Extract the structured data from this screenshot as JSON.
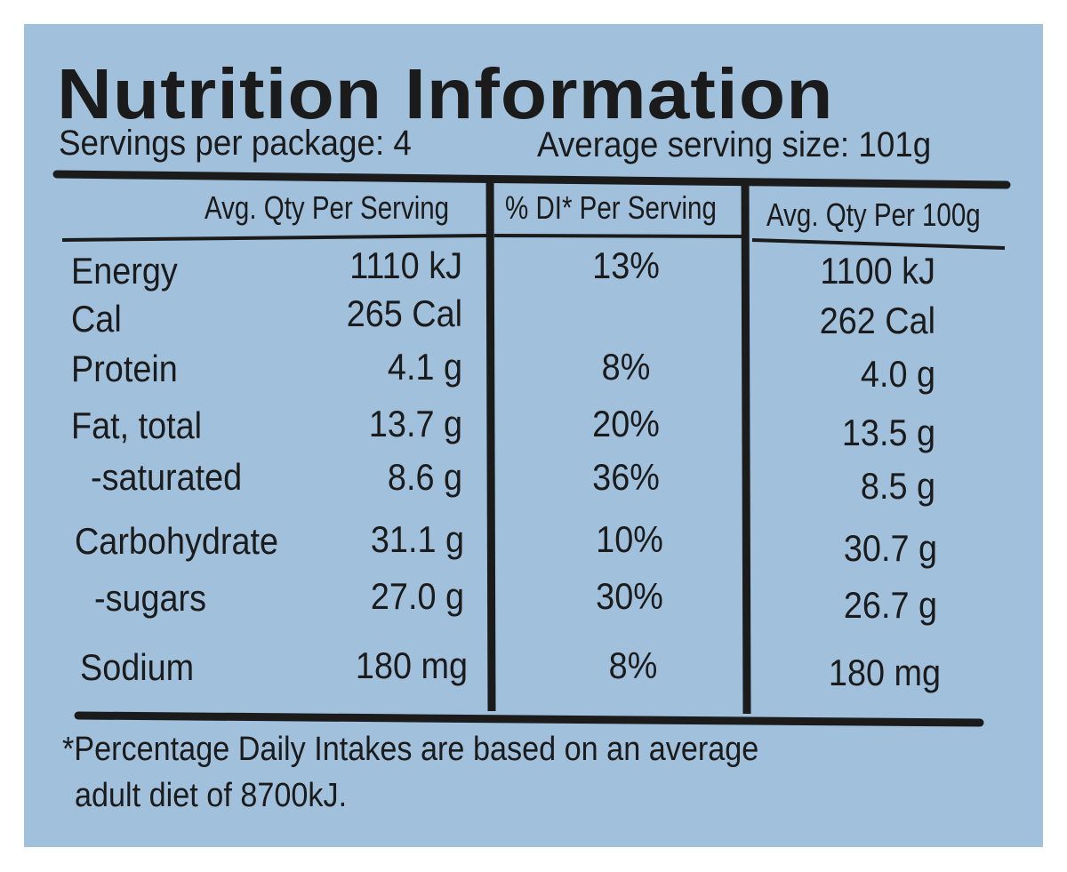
{
  "title": "Nutrition Information",
  "servings_per_package": "Servings per package: 4",
  "average_serving_size": "Average serving size: 101g",
  "columns": {
    "per_serving": "Avg. Qty Per Serving",
    "di_per_serving": "% DI* Per Serving",
    "per_100g": "Avg. Qty Per 100g"
  },
  "rows": [
    {
      "name": "Energy",
      "serving": "1110 kJ",
      "di": "13%",
      "per100": "1100 kJ"
    },
    {
      "name": "Cal",
      "serving": "265 Cal",
      "di": "",
      "per100": "262 Cal"
    },
    {
      "name": "Protein",
      "serving": "4.1 g",
      "di": "8%",
      "per100": "4.0 g"
    },
    {
      "name": "Fat, total",
      "serving": "13.7 g",
      "di": "20%",
      "per100": "13.5 g"
    },
    {
      "name": "-saturated",
      "serving": "8.6 g",
      "di": "36%",
      "per100": "8.5 g"
    },
    {
      "name": "Carbohydrate",
      "serving": "31.1 g",
      "di": "10%",
      "per100": "30.7 g"
    },
    {
      "name": "-sugars",
      "serving": "27.0 g",
      "di": "30%",
      "per100": "26.7 g"
    },
    {
      "name": "Sodium",
      "serving": "180 mg",
      "di": "8%",
      "per100": "180 mg"
    }
  ],
  "footnote": {
    "line1": "*Percentage Daily Intakes are based on an average",
    "line2": "adult diet of 8700kJ."
  }
}
